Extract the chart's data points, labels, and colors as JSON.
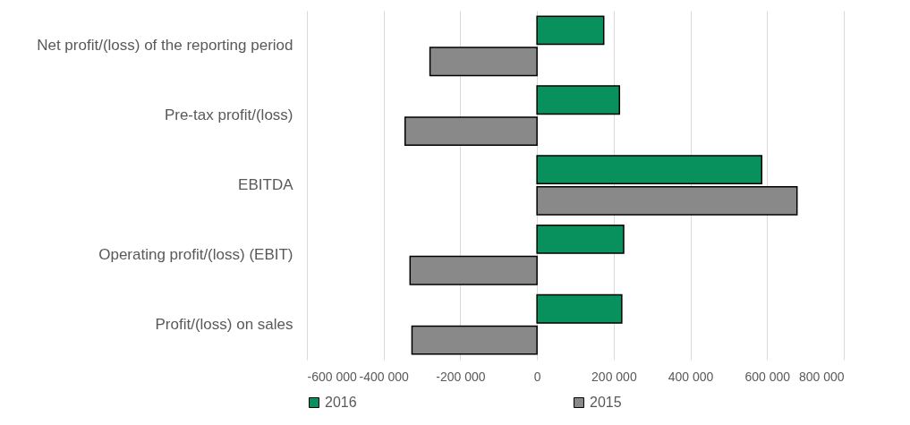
{
  "chart_data": {
    "type": "bar",
    "orientation": "horizontal",
    "categories": [
      "Net profit/(loss) of the reporting period",
      "Pre-tax profit/(loss)",
      "EBITDA",
      "Operating profit/(loss) (EBIT)",
      "Profit/(loss) on sales"
    ],
    "series": [
      {
        "name": "2016",
        "color": "#08915c",
        "values": [
          174000,
          215000,
          586000,
          226000,
          221000
        ]
      },
      {
        "name": "2015",
        "color": "#898989",
        "values": [
          -279000,
          -344000,
          678000,
          -331000,
          -326000
        ]
      }
    ],
    "xlim": [
      -600000,
      800000
    ],
    "xticks": [
      {
        "value": -600000,
        "label": "-600 000"
      },
      {
        "value": -400000,
        "label": "-400 000"
      },
      {
        "value": -200000,
        "label": "-200 000"
      },
      0,
      {
        "value": 200000,
        "label": "200 000"
      },
      {
        "value": 400000,
        "label": "400 000"
      },
      {
        "value": 600000,
        "label": "600 000"
      },
      {
        "value": 800000,
        "label": "800 000"
      }
    ],
    "grid": "x",
    "legend": "bottom"
  }
}
